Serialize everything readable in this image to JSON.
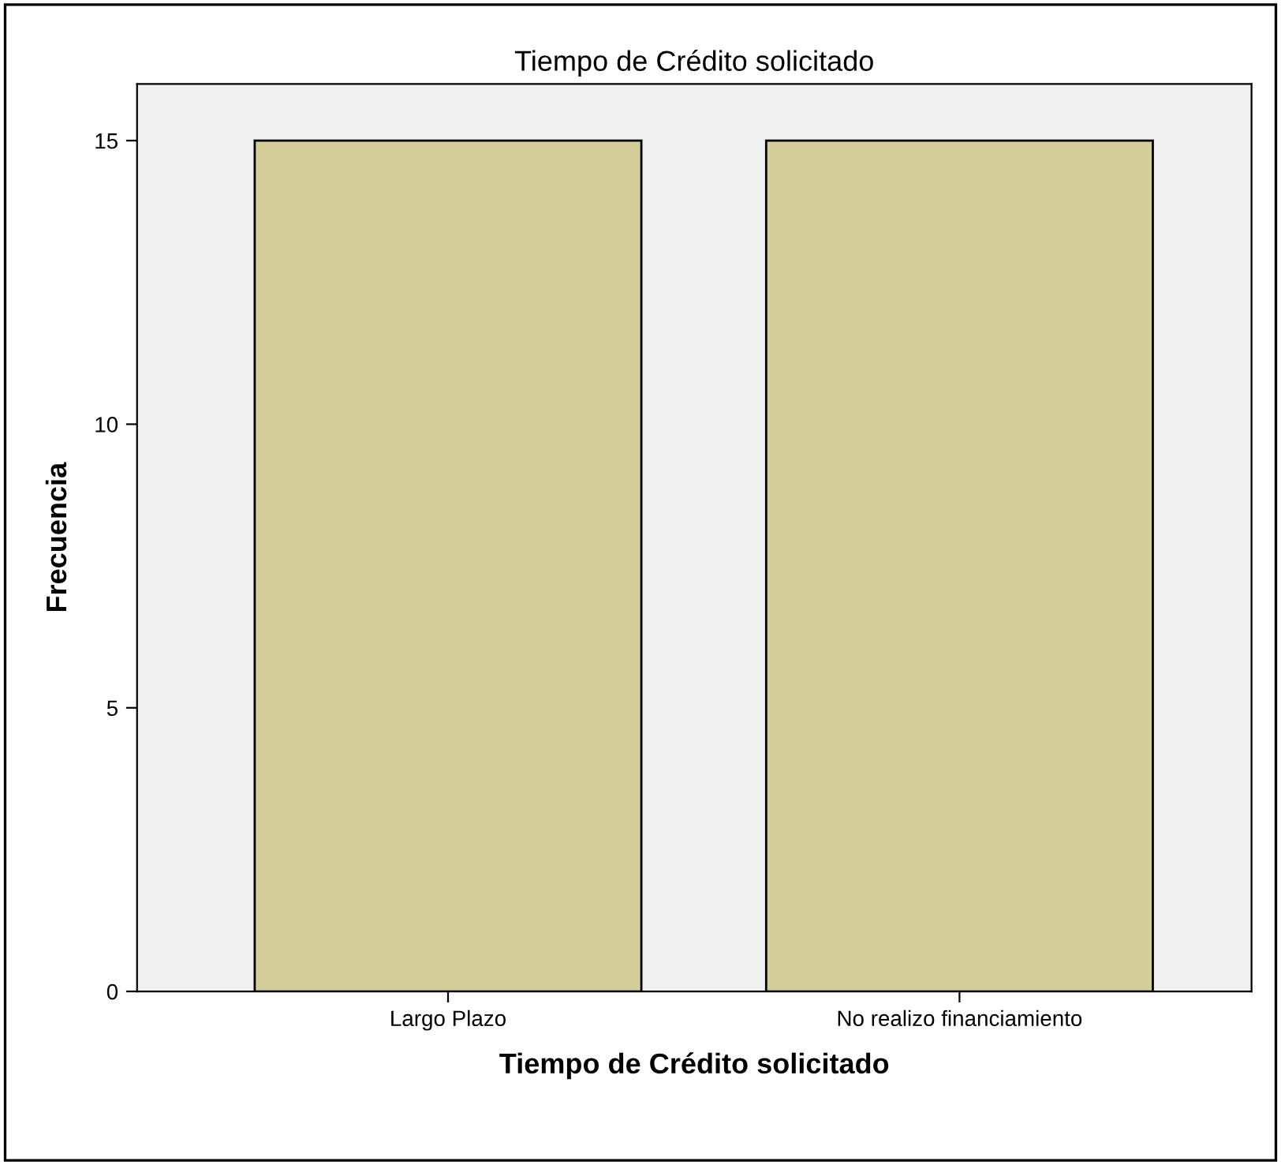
{
  "chart_data": {
    "type": "bar",
    "title": "Tiempo de Crédito solicitado",
    "xlabel": "Tiempo de Crédito solicitado",
    "ylabel": "Frecuencia",
    "categories": [
      "Largo Plazo",
      "No realizo financiamiento"
    ],
    "values": [
      15,
      15
    ],
    "color": "#d3cd97",
    "ylim": [
      0,
      16
    ],
    "yticks": [
      0,
      5,
      10,
      15
    ],
    "grid": false,
    "legend": false
  }
}
